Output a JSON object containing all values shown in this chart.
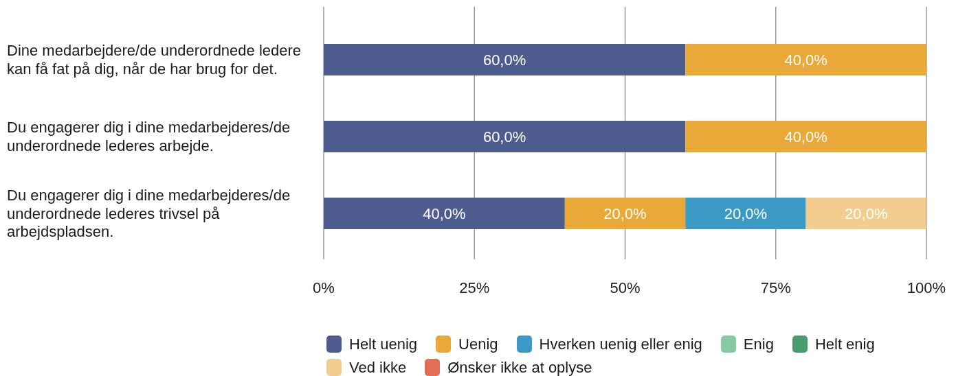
{
  "chart_data": {
    "type": "bar",
    "orientation": "horizontal",
    "stacked": true,
    "categories": [
      "Dine medarbejdere/de underordnede ledere kan få fat på dig, når de har brug for det.",
      "Du engagerer dig i dine medarbejderes/de underordnede lederes arbejde.",
      "Du engagerer dig i dine medarbejderes/de underordnede lederes trivsel på arbejdspladsen."
    ],
    "series": [
      {
        "name": "Helt uenig",
        "color": "#4f5d8e",
        "values": [
          60,
          60,
          40
        ],
        "value_labels": [
          "60,0%",
          "60,0%",
          "40,0%"
        ]
      },
      {
        "name": "Uenig",
        "color": "#e9a838",
        "values": [
          40,
          40,
          20
        ],
        "value_labels": [
          "40,0%",
          "40,0%",
          "20,0%"
        ]
      },
      {
        "name": "Hverken uenig eller enig",
        "color": "#3a9ac4",
        "values": [
          null,
          null,
          20
        ],
        "value_labels": [
          null,
          null,
          "20,0%"
        ]
      },
      {
        "name": "Enig",
        "color": "#86c9a3",
        "values": [
          null,
          null,
          null
        ]
      },
      {
        "name": "Helt enig",
        "color": "#4a9b6e",
        "values": [
          null,
          null,
          null
        ]
      },
      {
        "name": "Ved ikke",
        "color": "#f2cd8e",
        "values": [
          null,
          null,
          20
        ],
        "value_labels": [
          null,
          null,
          "20,0%"
        ]
      },
      {
        "name": "Ønsker ikke at oplyse",
        "color": "#e06f55",
        "values": [
          null,
          null,
          null
        ]
      }
    ],
    "xlim": [
      0,
      100
    ],
    "xticks": [
      {
        "value": 0,
        "label": "0%"
      },
      {
        "value": 25,
        "label": "25%"
      },
      {
        "value": 50,
        "label": "50%"
      },
      {
        "value": 75,
        "label": "75%"
      },
      {
        "value": 100,
        "label": "100%"
      }
    ],
    "grid": "x",
    "legend": "bottom"
  }
}
